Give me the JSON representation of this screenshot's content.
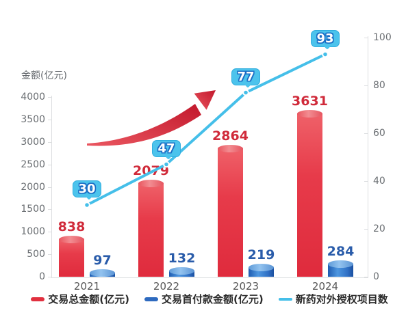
{
  "chart_data": {
    "type": "bar+line",
    "title": "",
    "categories": [
      "2021",
      "2022",
      "2023",
      "2024"
    ],
    "series": [
      {
        "name": "交易总金额(亿元)",
        "type": "bar",
        "axis": "left",
        "color": "#e1303f",
        "label_color": "#d02a3a",
        "values": [
          838,
          2079,
          2864,
          3631
        ]
      },
      {
        "name": "交易首付款金额(亿元)",
        "type": "bar",
        "axis": "left",
        "color": "#2e6abf",
        "label_color": "#2a5caa",
        "values": [
          97,
          132,
          219,
          284
        ]
      },
      {
        "name": "新药对外授权项目数",
        "type": "line",
        "axis": "right",
        "color": "#45bfe9",
        "values": [
          30,
          47,
          77,
          93
        ]
      }
    ],
    "left_axis": {
      "title": "金额(亿元)",
      "min": 0,
      "max": 4000,
      "step": 500,
      "ticks": [
        "0",
        "500",
        "1000",
        "1500",
        "2000",
        "2500",
        "3000",
        "3500",
        "4000"
      ]
    },
    "right_axis": {
      "title": "",
      "min": 0,
      "max": 100,
      "step": 20,
      "ticks": [
        "0",
        "20",
        "40",
        "60",
        "80",
        "100"
      ]
    },
    "legend_position": "bottom",
    "grid": false,
    "annotations": [
      {
        "type": "arrow",
        "meaning": "growth-trend"
      }
    ]
  },
  "colors": {
    "background": "#ffffff",
    "axis_line": "#dcdee0",
    "tick_text": "#6a6e72",
    "year_text": "#575757",
    "bar_total": "#e1303f",
    "bar_upfront": "#2e6abf",
    "line": "#45bfe9",
    "badge_bg": "#4cc3ec",
    "badge_border": "#2fadde",
    "badge_text": "#ffffff",
    "badge_text_outline": "#1a6ec5",
    "arrow_start": "#ea5660",
    "arrow_end": "#c2182c",
    "legend_text": "#2b2b2b"
  }
}
